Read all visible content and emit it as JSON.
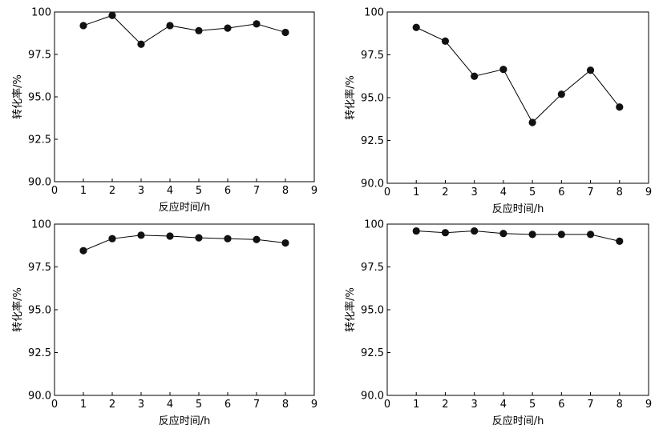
{
  "chart_data": [
    {
      "type": "line",
      "xlabel": "反应时间/h",
      "ylabel": "转化率/%",
      "xlim": [
        0,
        9
      ],
      "ylim": [
        90.0,
        100
      ],
      "xticks": [
        "0",
        "1",
        "2",
        "3",
        "4",
        "5",
        "6",
        "7",
        "8",
        "9"
      ],
      "yticks": [
        "90.0",
        "92.5",
        "95.0",
        "97.5",
        "100"
      ],
      "series": [
        {
          "x": [
            1,
            2,
            3,
            4,
            5,
            6,
            7,
            8
          ],
          "y": [
            99.2,
            99.8,
            98.1,
            99.2,
            98.9,
            99.05,
            99.3,
            98.8
          ]
        }
      ]
    },
    {
      "type": "line",
      "xlabel": "反应时间/h",
      "ylabel": "转化率/%",
      "xlim": [
        0,
        9
      ],
      "ylim": [
        90.0,
        100
      ],
      "xticks": [
        "0",
        "1",
        "2",
        "3",
        "4",
        "5",
        "6",
        "7",
        "8",
        "9"
      ],
      "yticks": [
        "90.0",
        "92.5",
        "95.0",
        "97.5",
        "100"
      ],
      "series": [
        {
          "x": [
            1,
            2,
            3,
            4,
            5,
            6,
            7,
            8
          ],
          "y": [
            99.1,
            98.3,
            96.25,
            96.65,
            93.55,
            95.2,
            96.6,
            94.45
          ]
        }
      ]
    },
    {
      "type": "line",
      "xlabel": "反应时间/h",
      "ylabel": "转化率/%",
      "xlim": [
        0,
        9
      ],
      "ylim": [
        90.0,
        100
      ],
      "xticks": [
        "0",
        "1",
        "2",
        "3",
        "4",
        "5",
        "6",
        "7",
        "8",
        "9"
      ],
      "yticks": [
        "90.0",
        "92.5",
        "95.0",
        "97.5",
        "100"
      ],
      "series": [
        {
          "x": [
            1,
            2,
            3,
            4,
            5,
            6,
            7,
            8
          ],
          "y": [
            98.45,
            99.15,
            99.35,
            99.3,
            99.2,
            99.15,
            99.1,
            98.9
          ]
        }
      ]
    },
    {
      "type": "line",
      "xlabel": "反应时间/h",
      "ylabel": "转化率/%",
      "xlim": [
        0,
        9
      ],
      "ylim": [
        90.0,
        100
      ],
      "xticks": [
        "0",
        "1",
        "2",
        "3",
        "4",
        "5",
        "6",
        "7",
        "8",
        "9"
      ],
      "yticks": [
        "90.0",
        "92.5",
        "95.0",
        "97.5",
        "100"
      ],
      "series": [
        {
          "x": [
            1,
            2,
            3,
            4,
            5,
            6,
            7,
            8
          ],
          "y": [
            99.6,
            99.5,
            99.6,
            99.45,
            99.4,
            99.4,
            99.4,
            99.0
          ]
        }
      ]
    }
  ]
}
